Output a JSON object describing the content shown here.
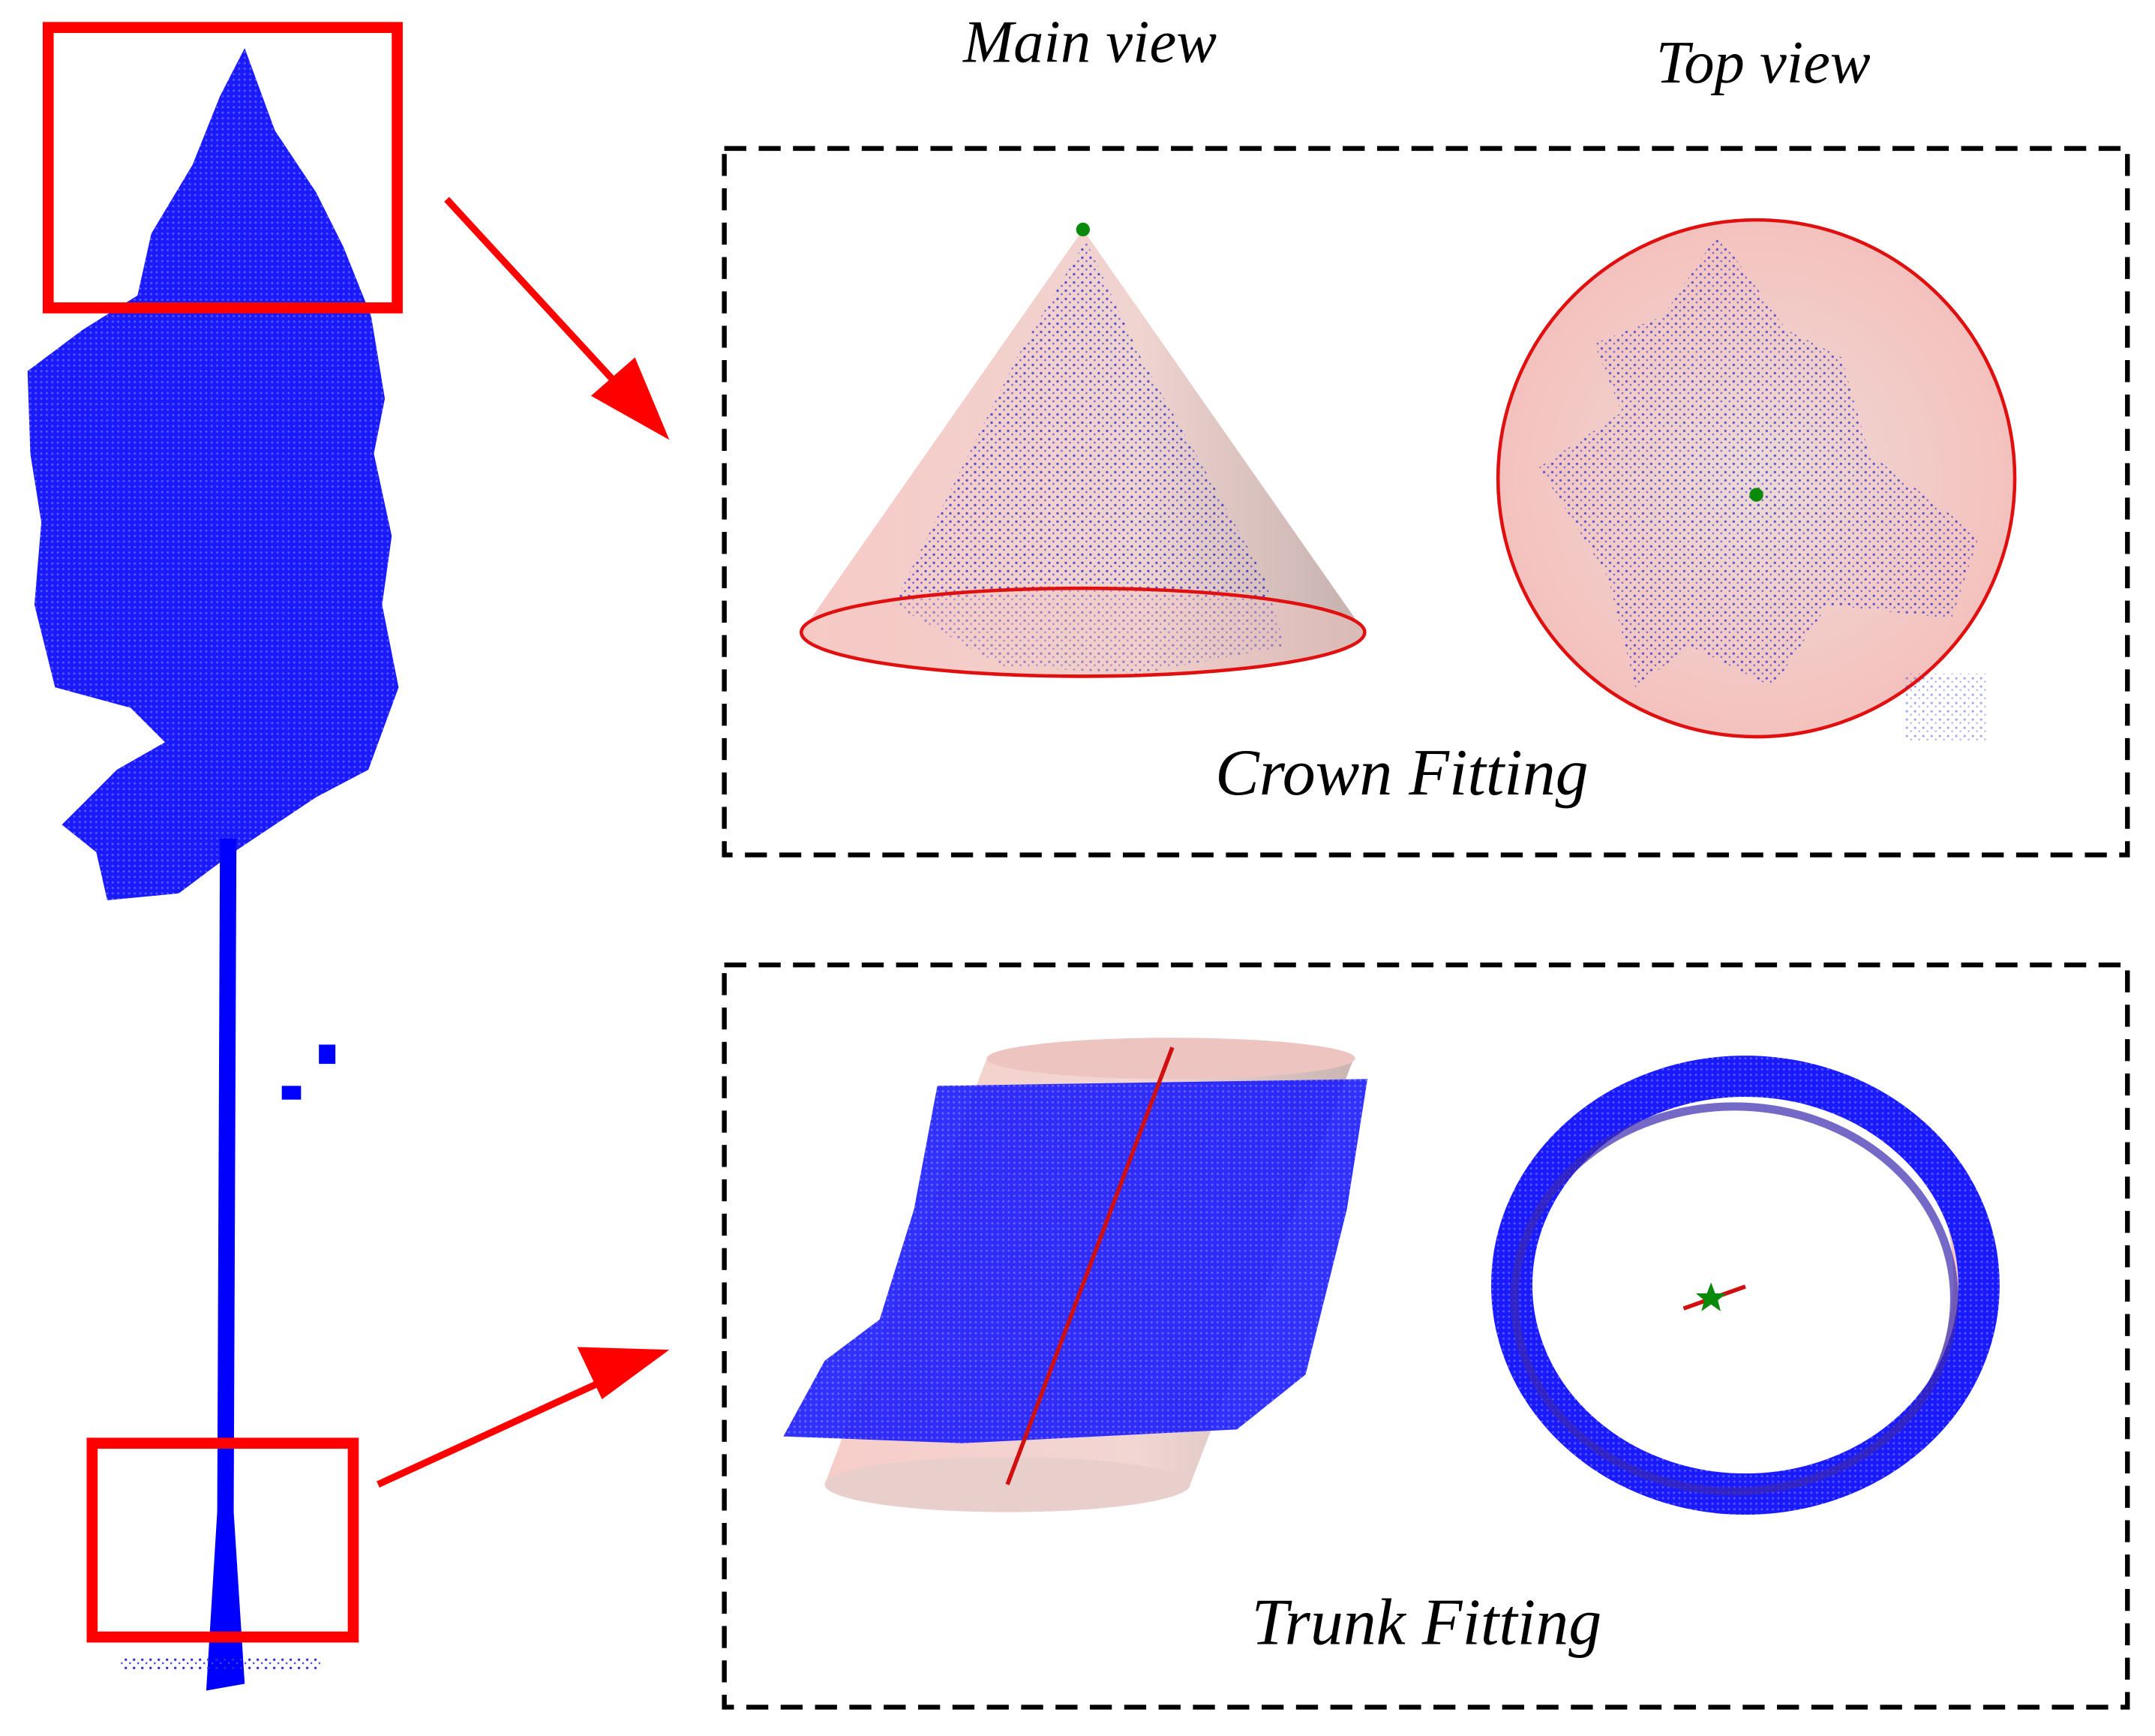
{
  "views": {
    "main": "Main view",
    "top": "Top view"
  },
  "panels": [
    {
      "label": "Crown Fitting"
    },
    {
      "label": "Trunk Fitting"
    }
  ]
}
